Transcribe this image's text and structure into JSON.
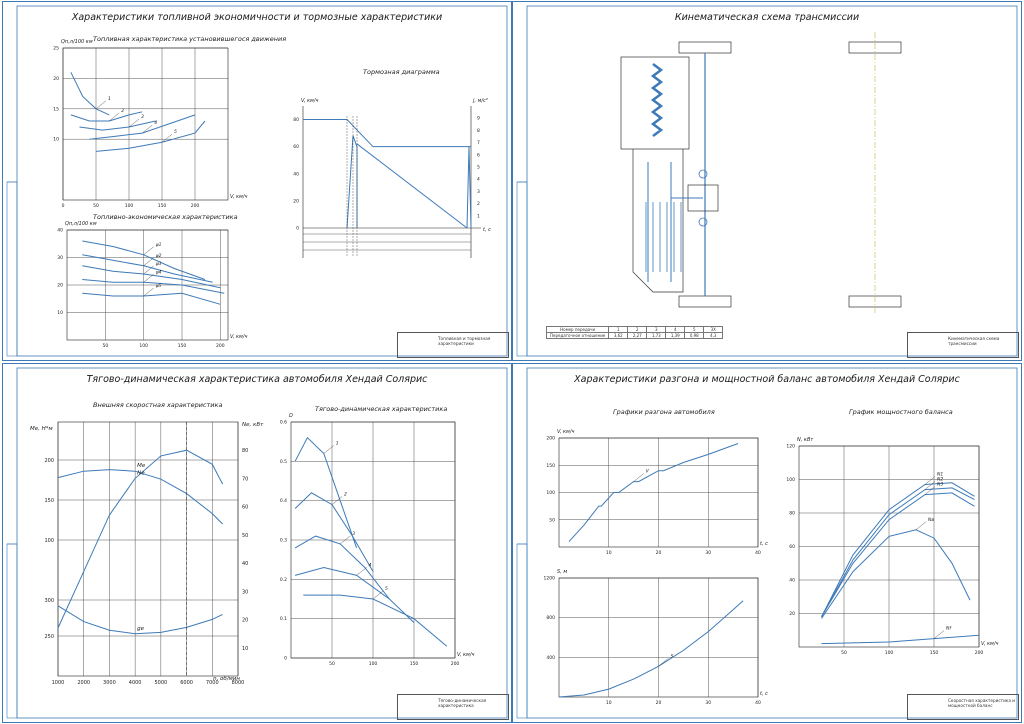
{
  "colors": {
    "curve": "#3d7ab8",
    "grid": "#555555",
    "frame": "#3d7ab8",
    "axis": "#222222"
  },
  "sheets": {
    "fuel": {
      "title": "Характеристики топливной экономичности и тормозные характеристики",
      "fuel_chart_title": "Топливная характеристика установившегося движения",
      "econ_chart_title": "Топливно-экономическая характеристика",
      "brake_chart_title": "Тормозная диаграмма",
      "stamp": "Топливная и тормозная характеристики"
    },
    "kinematic": {
      "title": "Кинематическая схема трансмиссии",
      "gear_table": {
        "rows": [
          [
            "Номер передачи",
            "1",
            "2",
            "3",
            "4",
            "5",
            "ЗХ"
          ],
          [
            "Передаточное отношение",
            "3,62",
            "2,27",
            "1,73",
            "1,39",
            "0,98",
            "4,3"
          ]
        ]
      },
      "stamp": "Кинематическая схема трансмиссии"
    },
    "traction": {
      "title": "Тягово-динамическая характеристика автомобиля Хендай Солярис",
      "speed_chart_title": "Внешняя скоростная характеристика",
      "dynamic_chart_title": "Тягово-динамическая характеристика",
      "stamp": "Тягово-динамическая характеристика"
    },
    "accel": {
      "title": "Характеристики разгона и мощностной баланс автомобиля Хендай Солярис",
      "accel_chart_title": "Графики разгона автомобиля",
      "power_chart_title": "График мощностного баланса",
      "stamp": "Скоростная характеристика и мощностной баланс"
    }
  },
  "chart_data": [
    {
      "type": "line",
      "title": "Топливная характеристика установившегося движения",
      "xlabel": "V, км/ч",
      "ylabel": "Qп,л/100 км",
      "xlim": [
        0,
        250
      ],
      "ylim": [
        0,
        25
      ],
      "xticks": [
        0,
        50,
        100,
        150,
        200
      ],
      "yticks": [
        10,
        15,
        20,
        25
      ],
      "series": [
        {
          "name": "1",
          "points": [
            [
              12,
              21
            ],
            [
              30,
              17
            ],
            [
              50,
              15
            ],
            [
              70,
              14
            ]
          ]
        },
        {
          "name": "2",
          "points": [
            [
              12,
              14
            ],
            [
              40,
              13
            ],
            [
              70,
              13
            ],
            [
              100,
              14
            ],
            [
              120,
              14.5
            ]
          ]
        },
        {
          "name": "3",
          "points": [
            [
              25,
              12
            ],
            [
              60,
              11.5
            ],
            [
              100,
              12
            ],
            [
              140,
              13
            ]
          ]
        },
        {
          "name": "4",
          "points": [
            [
              40,
              10
            ],
            [
              80,
              10.5
            ],
            [
              120,
              11
            ],
            [
              160,
              12.5
            ],
            [
              200,
              14
            ]
          ]
        },
        {
          "name": "5",
          "points": [
            [
              50,
              8
            ],
            [
              100,
              8.5
            ],
            [
              150,
              9.5
            ],
            [
              200,
              11
            ],
            [
              215,
              13
            ]
          ]
        }
      ]
    },
    {
      "type": "line",
      "title": "Топливно-экономическая характеристика",
      "xlabel": "V, км/ч",
      "ylabel": "Qп,л/100 км",
      "xlim": [
        0,
        210
      ],
      "ylim": [
        0,
        40
      ],
      "xticks": [
        50,
        100,
        150,
        200
      ],
      "yticks": [
        10,
        20,
        30,
        40
      ],
      "series": [
        {
          "name": "ψ1",
          "points": [
            [
              20,
              36
            ],
            [
              60,
              34
            ],
            [
              100,
              31
            ],
            [
              140,
              26
            ],
            [
              180,
              22
            ]
          ]
        },
        {
          "name": "ψ2",
          "points": [
            [
              20,
              31
            ],
            [
              60,
              29
            ],
            [
              100,
              27
            ],
            [
              140,
              24
            ],
            [
              190,
              21
            ]
          ]
        },
        {
          "name": "ψ3",
          "points": [
            [
              20,
              27
            ],
            [
              60,
              25
            ],
            [
              100,
              24
            ],
            [
              150,
              22
            ],
            [
              200,
              19
            ]
          ]
        },
        {
          "name": "ψ4",
          "points": [
            [
              20,
              22
            ],
            [
              60,
              21
            ],
            [
              100,
              21
            ],
            [
              150,
              20
            ],
            [
              205,
              17
            ]
          ]
        },
        {
          "name": "ψ5",
          "points": [
            [
              20,
              17
            ],
            [
              60,
              16
            ],
            [
              100,
              16
            ],
            [
              150,
              17
            ],
            [
              200,
              13
            ]
          ]
        }
      ]
    },
    {
      "type": "line",
      "title": "Тормозная диаграмма",
      "xlabel": "t, с",
      "ylabel": "V, км/ч",
      "ylim": [
        0,
        90
      ],
      "yticks": [
        0,
        20,
        40,
        60,
        80
      ],
      "y2label": "j, м/с²",
      "y2ticks": [
        1,
        2,
        3,
        4,
        5,
        6,
        7,
        8,
        9
      ]
    },
    {
      "type": "line",
      "title": "Внешняя скоростная характеристика",
      "xlabel": "n, об/мин",
      "ylabel": "Mе, Н*м",
      "y2label": "Nе, кВт",
      "xlim": [
        1000,
        8000
      ],
      "xticks": [
        1000,
        2000,
        3000,
        4000,
        5000,
        6000,
        7000,
        8000
      ],
      "yticks_M": [
        100,
        150,
        200
      ],
      "yticks_g": [
        250,
        300
      ],
      "yticks_N": [
        10,
        20,
        30,
        40,
        50,
        60,
        70,
        80
      ],
      "series": [
        {
          "name": "Mе",
          "points": [
            [
              1000,
              178
            ],
            [
              2000,
              186
            ],
            [
              3000,
              188
            ],
            [
              4000,
              186
            ],
            [
              5000,
              176
            ],
            [
              6000,
              158
            ],
            [
              7000,
              133
            ],
            [
              7400,
              120
            ]
          ]
        },
        {
          "name": "Nе",
          "points": [
            [
              1000,
              17
            ],
            [
              2000,
              37
            ],
            [
              3000,
              57
            ],
            [
              4000,
              70
            ],
            [
              5000,
              78
            ],
            [
              6000,
              80
            ],
            [
              7000,
              75
            ],
            [
              7400,
              68
            ]
          ]
        },
        {
          "name": "gе",
          "points": [
            [
              1000,
              292
            ],
            [
              2000,
              270
            ],
            [
              3000,
              258
            ],
            [
              4000,
              253
            ],
            [
              5000,
              255
            ],
            [
              6000,
              262
            ],
            [
              7000,
              273
            ],
            [
              7400,
              280
            ]
          ]
        }
      ]
    },
    {
      "type": "line",
      "title": "Тягово-динамическая характеристика",
      "xlabel": "V, км/ч",
      "ylabel": "D",
      "xlim": [
        0,
        200
      ],
      "ylim": [
        0,
        0.6
      ],
      "xticks": [
        50,
        100,
        150,
        200
      ],
      "yticks": [
        0,
        0.1,
        0.2,
        0.3,
        0.4,
        0.5,
        0.6
      ],
      "series": [
        {
          "name": "1",
          "points": [
            [
              5,
              0.5
            ],
            [
              20,
              0.56
            ],
            [
              40,
              0.52
            ],
            [
              60,
              0.4
            ],
            [
              80,
              0.28
            ]
          ]
        },
        {
          "name": "2",
          "points": [
            [
              5,
              0.38
            ],
            [
              25,
              0.42
            ],
            [
              50,
              0.39
            ],
            [
              75,
              0.31
            ],
            [
              100,
              0.22
            ]
          ]
        },
        {
          "name": "3",
          "points": [
            [
              5,
              0.28
            ],
            [
              30,
              0.31
            ],
            [
              60,
              0.29
            ],
            [
              90,
              0.23
            ],
            [
              120,
              0.15
            ]
          ]
        },
        {
          "name": "4",
          "points": [
            [
              5,
              0.21
            ],
            [
              40,
              0.23
            ],
            [
              80,
              0.21
            ],
            [
              120,
              0.15
            ],
            [
              150,
              0.09
            ]
          ]
        },
        {
          "name": "5",
          "points": [
            [
              15,
              0.16
            ],
            [
              60,
              0.16
            ],
            [
              100,
              0.15
            ],
            [
              150,
              0.1
            ],
            [
              190,
              0.03
            ]
          ]
        }
      ]
    },
    {
      "type": "line",
      "title": "Графики разгона автомобиля",
      "xlabel": "t, с",
      "ylabel": "V, км/ч",
      "xlim": [
        0,
        40
      ],
      "ylim": [
        0,
        200
      ],
      "xticks": [
        10,
        20,
        30,
        40
      ],
      "yticks": [
        50,
        100,
        150,
        200
      ],
      "series": [
        {
          "name": "V",
          "points": [
            [
              2,
              10
            ],
            [
              5,
              40
            ],
            [
              8,
              75
            ],
            [
              8.5,
              75
            ],
            [
              11,
              100
            ],
            [
              12,
              100
            ],
            [
              15,
              120
            ],
            [
              16,
              120
            ],
            [
              20,
              140
            ],
            [
              21,
              140
            ],
            [
              25,
              155
            ],
            [
              30,
              170
            ],
            [
              36,
              190
            ]
          ]
        }
      ]
    },
    {
      "type": "line",
      "xlabel": "t, с",
      "ylabel": "S, м",
      "xlim": [
        0,
        40
      ],
      "ylim": [
        0,
        1200
      ],
      "xticks": [
        10,
        20,
        30,
        40
      ],
      "yticks": [
        400,
        800,
        1200
      ],
      "series": [
        {
          "name": "S",
          "points": [
            [
              0,
              0
            ],
            [
              5,
              20
            ],
            [
              10,
              80
            ],
            [
              15,
              180
            ],
            [
              20,
              310
            ],
            [
              25,
              470
            ],
            [
              30,
              660
            ],
            [
              35,
              880
            ],
            [
              37,
              970
            ]
          ]
        }
      ]
    },
    {
      "type": "line",
      "title": "График мощностного баланса",
      "xlabel": "V, км/ч",
      "ylabel": "N, кВт",
      "xlim": [
        0,
        200
      ],
      "ylim": [
        0,
        120
      ],
      "xticks": [
        50,
        100,
        150,
        200
      ],
      "yticks": [
        20,
        40,
        60,
        80,
        100,
        120
      ],
      "series": [
        {
          "name": "N1",
          "points": [
            [
              25,
              18
            ],
            [
              60,
              55
            ],
            [
              100,
              82
            ],
            [
              140,
              97
            ],
            [
              170,
              98
            ],
            [
              195,
              90
            ]
          ]
        },
        {
          "name": "N2",
          "points": [
            [
              25,
              18
            ],
            [
              60,
              52
            ],
            [
              100,
              79
            ],
            [
              140,
              94
            ],
            [
              170,
              95
            ],
            [
              195,
              88
            ]
          ]
        },
        {
          "name": "N3",
          "points": [
            [
              25,
              18
            ],
            [
              60,
              50
            ],
            [
              100,
              76
            ],
            [
              140,
              91
            ],
            [
              170,
              92
            ],
            [
              195,
              84
            ]
          ]
        },
        {
          "name": "Nв",
          "points": [
            [
              25,
              17
            ],
            [
              60,
              45
            ],
            [
              100,
              66
            ],
            [
              130,
              70
            ],
            [
              150,
              65
            ],
            [
              170,
              50
            ],
            [
              190,
              28
            ]
          ]
        },
        {
          "name": "Nf",
          "points": [
            [
              25,
              2
            ],
            [
              100,
              3
            ],
            [
              150,
              5
            ],
            [
              200,
              7
            ]
          ]
        }
      ]
    }
  ]
}
